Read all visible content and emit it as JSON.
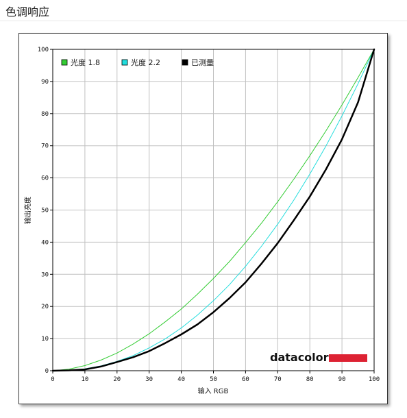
{
  "page": {
    "title": "色调响应"
  },
  "colors": {
    "gamma18": "#33cc33",
    "gamma22": "#22dddd",
    "measured": "#000000",
    "grid": "#c0c0c0",
    "brand_bar": "#dd2233"
  },
  "brand": {
    "logo_text": "datacolor"
  },
  "chart_data": {
    "type": "line",
    "xlabel": "输入 RGB",
    "ylabel": "输出亮度",
    "xlim": [
      0,
      100
    ],
    "ylim": [
      0,
      100
    ],
    "xticks": [
      0,
      10,
      20,
      30,
      40,
      50,
      60,
      70,
      80,
      90,
      100
    ],
    "yticks": [
      0,
      10,
      20,
      30,
      40,
      50,
      60,
      70,
      80,
      90,
      100
    ],
    "grid": true,
    "legend_position": "top-left",
    "series": [
      {
        "name": "光度 1.8",
        "color": "#33cc33",
        "x": [
          0,
          5,
          10,
          15,
          20,
          25,
          30,
          35,
          40,
          45,
          50,
          55,
          60,
          65,
          70,
          75,
          80,
          85,
          90,
          95,
          100
        ],
        "y": [
          0,
          0.5,
          1.6,
          3.3,
          5.5,
          8.3,
          11.5,
          15.2,
          19.2,
          23.8,
          28.7,
          34.0,
          39.9,
          46.0,
          52.6,
          59.6,
          66.9,
          74.6,
          82.7,
          91.2,
          100
        ]
      },
      {
        "name": "光度 2.2",
        "color": "#22dddd",
        "x": [
          0,
          5,
          10,
          15,
          20,
          25,
          30,
          35,
          40,
          45,
          50,
          55,
          60,
          65,
          70,
          75,
          80,
          85,
          90,
          95,
          100
        ],
        "y": [
          0,
          0.1,
          0.6,
          1.5,
          2.9,
          4.7,
          7.1,
          9.9,
          13.3,
          17.3,
          21.8,
          26.8,
          32.5,
          38.8,
          45.6,
          53.1,
          61.2,
          69.9,
          79.3,
          89.3,
          100
        ]
      },
      {
        "name": "已测量",
        "color": "#000000",
        "x": [
          0,
          5,
          10,
          15,
          20,
          25,
          30,
          35,
          40,
          45,
          50,
          55,
          60,
          65,
          70,
          75,
          80,
          85,
          90,
          95,
          100
        ],
        "y": [
          0,
          0.1,
          0.4,
          1.3,
          2.7,
          4.2,
          6.1,
          8.6,
          11.3,
          14.4,
          18.2,
          22.6,
          27.5,
          33.4,
          39.7,
          46.8,
          54.2,
          62.6,
          72.0,
          83.5,
          100
        ]
      }
    ]
  }
}
